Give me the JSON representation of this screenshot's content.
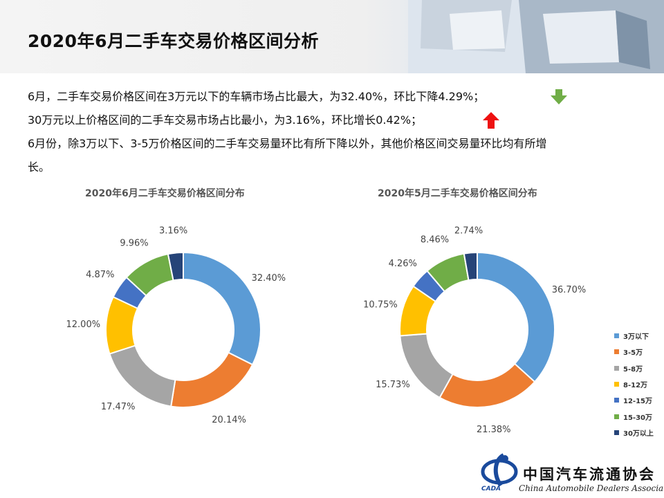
{
  "header": {
    "title": "2020年6月二手车交易价格区间分析"
  },
  "summary": {
    "line1": "6月，二手车交易价格区间在3万元以下的车辆市场占比最大，为32.40%，环比下降4.29%；",
    "line2": "30万元以上价格区间的二手车交易市场占比最小，为3.16%，环比增长0.42%；",
    "line3": "6月份，除3万以下、3-5万价格区间的二手车交易量环比有所下降以外，其他价格区间交易量环比均有所增",
    "line4": "长。"
  },
  "icons": {
    "down_arrow": "down-arrow-icon",
    "up_arrow": "up-arrow-icon",
    "down_color": "#70ad47",
    "up_color": "#ee1111"
  },
  "legend": {
    "items": [
      "3万以下",
      "3-5万",
      "5-8万",
      "8-12万",
      "12-15万",
      "15-30万",
      "30万以上"
    ]
  },
  "colors": [
    "#5b9bd5",
    "#ed7d31",
    "#a5a5a5",
    "#ffc000",
    "#4472c4",
    "#70ad47",
    "#264478"
  ],
  "chart_data": [
    {
      "type": "pie",
      "variant": "donut",
      "title": "2020年6月二手车交易价格区间分布",
      "categories": [
        "3万以下",
        "3-5万",
        "5-8万",
        "8-12万",
        "12-15万",
        "15-30万",
        "30万以上"
      ],
      "values": [
        32.4,
        20.14,
        17.47,
        12.0,
        4.87,
        9.96,
        3.16
      ],
      "labels": [
        "32.40%",
        "20.14%",
        "17.47%",
        "12.00%",
        "4.87%",
        "9.96%",
        "3.16%"
      ],
      "legend": "none"
    },
    {
      "type": "pie",
      "variant": "donut",
      "title": "2020年5月二手车交易价格区间分布",
      "categories": [
        "3万以下",
        "3-5万",
        "5-8万",
        "8-12万",
        "12-15万",
        "15-30万",
        "30万以上"
      ],
      "values": [
        36.7,
        21.38,
        15.73,
        10.75,
        4.26,
        8.46,
        2.74
      ],
      "labels": [
        "36.70%",
        "21.38%",
        "15.73%",
        "10.75%",
        "4.26%",
        "8.46%",
        "2.74%"
      ],
      "legend": "right"
    }
  ],
  "logo": {
    "name_cn": "中国汽车流通协会",
    "name_en": "China Automobile Dealers Association",
    "abbr": "CADA"
  }
}
